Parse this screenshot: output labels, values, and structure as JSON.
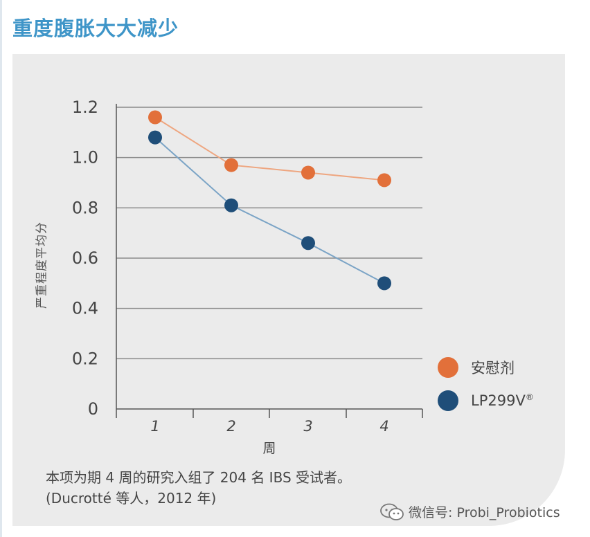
{
  "title": "重度腹胀大大减少",
  "chart_data": {
    "type": "line",
    "title": "重度腹胀大大减少",
    "xlabel": "周",
    "ylabel": "严重程度平均分",
    "x": [
      "1",
      "2",
      "3",
      "4"
    ],
    "ylim": [
      0,
      1.2
    ],
    "yticks": [
      "1.2",
      "1.0",
      "0.8",
      "0.6",
      "0.4",
      "0.2",
      "0"
    ],
    "ytick_values": [
      1.2,
      1.0,
      0.8,
      0.6,
      0.4,
      0.2,
      0
    ],
    "grid": true,
    "legend_position": "right",
    "series": [
      {
        "name": "安慰剂",
        "color": "#e2703a",
        "line_color": "#eea680",
        "values": [
          1.16,
          0.97,
          0.94,
          0.91
        ]
      },
      {
        "name": "LP299V",
        "name_sup": "®",
        "color": "#1f4e79",
        "line_color": "#7ba4c6",
        "values": [
          1.08,
          0.81,
          0.66,
          0.5
        ]
      }
    ]
  },
  "footnote": {
    "line1": "本项为期 4 周的研究入组了 204 名 IBS 受试者。",
    "line2": "(Ducrotté 等人，2012 年)"
  },
  "watermark": {
    "text": "微信号: Probi_Probiotics",
    "icon": "wechat-icon"
  }
}
